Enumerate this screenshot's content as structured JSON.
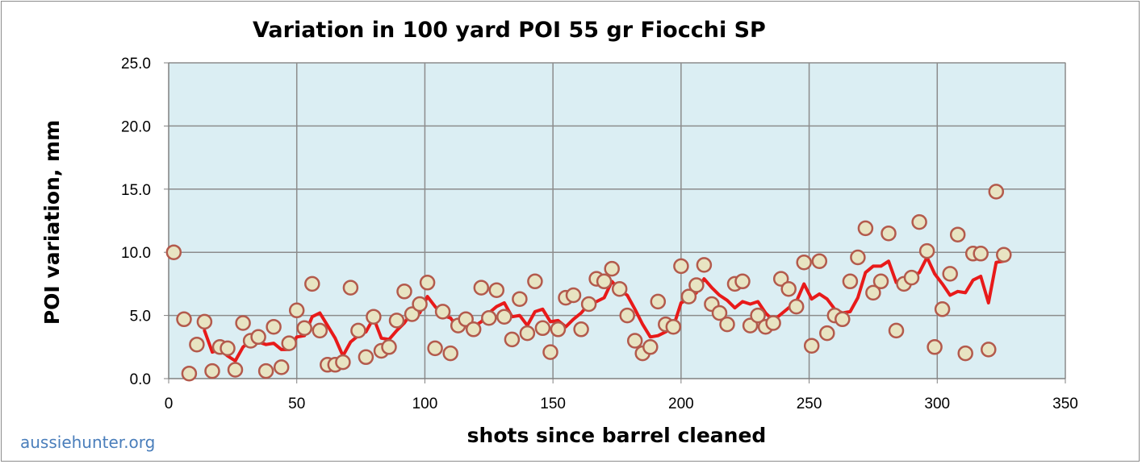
{
  "chart_data": {
    "type": "scatter",
    "title": "Variation in 100 yard POI 55 gr Fiocchi SP",
    "xlabel": "shots since barrel cleaned",
    "ylabel": "POI variation, mm",
    "xlim": [
      0,
      350
    ],
    "ylim": [
      0,
      25
    ],
    "x_ticks": [
      0,
      50,
      100,
      150,
      200,
      250,
      300,
      350
    ],
    "y_ticks": [
      "0.0",
      "5.0",
      "10.0",
      "15.0",
      "20.0",
      "25.0"
    ],
    "grid": true,
    "plot_background": "#dbeef3",
    "series": [
      {
        "kind": "points",
        "marker_fill": "#e8e4c2",
        "marker_edge": "#b35a4c",
        "x": [
          2,
          6,
          8,
          11,
          14,
          17,
          20,
          23,
          26,
          29,
          32,
          35,
          38,
          41,
          44,
          47,
          50,
          53,
          56,
          59,
          62,
          65,
          68,
          71,
          74,
          77,
          80,
          83,
          86,
          89,
          92,
          95,
          98,
          101,
          104,
          107,
          110,
          113,
          116,
          119,
          122,
          125,
          128,
          131,
          134,
          137,
          140,
          143,
          146,
          149,
          152,
          155,
          158,
          161,
          164,
          167,
          170,
          173,
          176,
          179,
          182,
          185,
          188,
          191,
          194,
          197,
          200,
          203,
          206,
          209,
          212,
          215,
          218,
          221,
          224,
          227,
          230,
          233,
          236,
          239,
          242,
          245,
          248,
          251,
          254,
          257,
          260,
          263,
          266,
          269,
          272,
          275,
          278,
          281,
          284,
          287,
          290,
          293,
          296,
          299,
          302,
          305,
          308,
          311,
          314,
          317,
          320,
          323,
          326
        ],
        "y": [
          10.0,
          4.7,
          0.4,
          2.7,
          4.5,
          0.6,
          2.5,
          2.4,
          0.7,
          4.4,
          3.0,
          3.3,
          0.6,
          4.1,
          0.9,
          2.8,
          5.4,
          4.0,
          7.5,
          3.8,
          1.1,
          1.1,
          1.3,
          7.2,
          3.8,
          1.7,
          4.9,
          2.2,
          2.5,
          4.6,
          6.9,
          5.1,
          5.9,
          7.6,
          2.4,
          5.3,
          2.0,
          4.2,
          4.7,
          3.9,
          7.2,
          4.8,
          7.0,
          4.9,
          3.1,
          6.3,
          3.6,
          7.7,
          4.0,
          2.1,
          3.9,
          6.4,
          6.6,
          3.9,
          5.9,
          7.9,
          7.7,
          8.7,
          7.1,
          5.0,
          3.0,
          2.0,
          2.5,
          6.1,
          4.3,
          4.1,
          8.9,
          6.5,
          7.4,
          9.0,
          5.9,
          5.2,
          4.3,
          7.5,
          7.7,
          4.2,
          5.0,
          4.1,
          4.4,
          7.9,
          7.1,
          5.7,
          9.2,
          2.6,
          9.3,
          3.6,
          5.0,
          4.7,
          7.7,
          9.6,
          11.9,
          6.8,
          7.7,
          11.5,
          3.8,
          7.5,
          8.0,
          12.4,
          10.1,
          2.5,
          5.5,
          8.3,
          11.4,
          2.0,
          9.9,
          9.9,
          2.3,
          14.8,
          9.8
        ]
      },
      {
        "kind": "moving-average-line",
        "color": "#e81a1a",
        "x": [
          14,
          17,
          20,
          23,
          26,
          29,
          32,
          35,
          38,
          41,
          44,
          47,
          50,
          53,
          56,
          59,
          62,
          65,
          68,
          71,
          74,
          77,
          80,
          83,
          86,
          89,
          92,
          95,
          98,
          101,
          104,
          107,
          110,
          113,
          116,
          119,
          122,
          125,
          128,
          131,
          134,
          137,
          140,
          143,
          146,
          149,
          152,
          155,
          158,
          161,
          164,
          167,
          170,
          173,
          176,
          179,
          182,
          185,
          188,
          191,
          194,
          197,
          200,
          203,
          206,
          209,
          212,
          215,
          218,
          221,
          224,
          227,
          230,
          233,
          236,
          239,
          242,
          245,
          248,
          251,
          254,
          257,
          260,
          263,
          266,
          269,
          272,
          275,
          278,
          281,
          284,
          287,
          290,
          293,
          296,
          299,
          302,
          305,
          308,
          311,
          314,
          317,
          320,
          323,
          326
        ],
        "y": [
          3.8,
          2.1,
          2.3,
          1.8,
          1.4,
          2.5,
          3.0,
          2.9,
          2.7,
          2.8,
          2.3,
          2.3,
          3.3,
          3.4,
          4.9,
          5.2,
          4.2,
          3.2,
          1.8,
          2.9,
          3.4,
          3.7,
          4.8,
          3.2,
          3.1,
          3.8,
          4.4,
          5.3,
          5.2,
          6.5,
          5.7,
          5.0,
          4.8,
          4.0,
          4.5,
          4.1,
          4.5,
          5.2,
          5.7,
          6.0,
          4.9,
          5.0,
          4.2,
          5.3,
          5.5,
          4.5,
          4.6,
          4.1,
          4.7,
          5.2,
          5.9,
          6.1,
          6.4,
          7.7,
          7.0,
          6.6,
          5.5,
          4.3,
          3.3,
          3.4,
          3.7,
          4.1,
          6.0,
          6.3,
          6.8,
          7.9,
          7.2,
          6.6,
          6.2,
          5.6,
          6.1,
          5.9,
          6.1,
          5.2,
          4.6,
          5.1,
          5.6,
          6.1,
          7.5,
          6.3,
          6.7,
          6.3,
          5.5,
          5.2,
          5.3,
          6.4,
          8.4,
          8.9,
          8.9,
          9.3,
          7.6,
          7.6,
          8.0,
          8.4,
          9.6,
          8.3,
          7.5,
          6.6,
          6.9,
          6.8,
          7.8,
          8.1,
          6.0,
          9.2,
          9.3
        ]
      }
    ]
  },
  "footer": {
    "watermark": "aussiehunter.org"
  }
}
